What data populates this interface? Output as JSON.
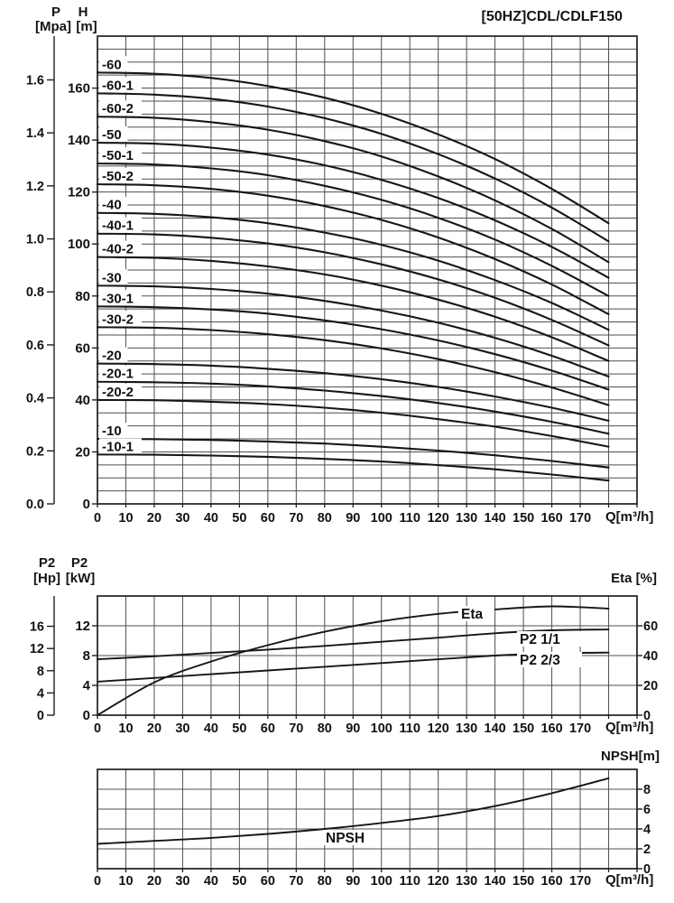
{
  "page_title": "[50HZ]CDL/CDLF150",
  "colors": {
    "curve": "#161616",
    "grid": "#4f4f4f",
    "border": "#1f1f1f",
    "text": "#121212",
    "background": "#ffffff"
  },
  "chart_data": [
    {
      "id": "head-capacity",
      "type": "line",
      "title": "[50HZ]CDL/CDLF150",
      "x_label": "Q[m³/h]",
      "x_ticks": [
        0,
        10,
        20,
        30,
        40,
        50,
        60,
        70,
        80,
        90,
        100,
        110,
        120,
        130,
        140,
        150,
        160,
        170
      ],
      "x_grid_max": 190,
      "x": [
        0,
        20,
        40,
        60,
        80,
        100,
        120,
        140,
        160,
        180
      ],
      "left_axis_outer": {
        "name": "P",
        "unit": "[Mpa]",
        "ticks": [
          "0.0",
          "0.2",
          "0.4",
          "0.6",
          "0.8",
          "1.0",
          "1.2",
          "1.4",
          "1.6"
        ]
      },
      "left_axis_inner": {
        "name": "H",
        "unit": "[m]",
        "ticks": [
          0,
          20,
          40,
          60,
          80,
          100,
          120,
          140,
          160
        ]
      },
      "y_range": [
        0,
        180
      ],
      "grid_step_y": 5,
      "grid": true,
      "legend_position": "inline-left",
      "series": [
        {
          "name": "-60",
          "values": [
            166,
            165.5,
            163.9,
            160.8,
            156.3,
            150.1,
            142.2,
            132.7,
            121.2,
            108
          ]
        },
        {
          "name": "-60-1",
          "values": [
            158,
            157.5,
            155.9,
            152.9,
            148.4,
            142.4,
            134.6,
            125.2,
            114,
            101
          ]
        },
        {
          "name": "-60-2",
          "values": [
            149,
            148.6,
            146.9,
            144,
            139.6,
            133.7,
            126,
            116.8,
            105.8,
            93
          ]
        },
        {
          "name": "-50",
          "values": [
            139,
            138.6,
            137.1,
            134.4,
            130.3,
            124.7,
            117.7,
            109.1,
            98.9,
            87
          ]
        },
        {
          "name": "-50-1",
          "values": [
            131,
            130.6,
            129.1,
            126.5,
            122.4,
            117,
            110.1,
            101.7,
            91.6,
            80
          ]
        },
        {
          "name": "-50-2",
          "values": [
            123,
            122.6,
            121.2,
            118.6,
            114.6,
            109.3,
            102.5,
            94.2,
            84.4,
            73
          ]
        },
        {
          "name": "-40",
          "values": [
            112,
            111.6,
            110.3,
            108,
            104.4,
            99.7,
            93.6,
            86.1,
            77.3,
            67
          ]
        },
        {
          "name": "-40-1",
          "values": [
            104,
            103.7,
            102.4,
            100.2,
            96.8,
            92.2,
            86.4,
            79.3,
            70.8,
            61
          ]
        },
        {
          "name": "-40-2",
          "values": [
            95,
            94.7,
            93.5,
            91.4,
            88.3,
            84,
            78.6,
            72,
            64.1,
            55
          ]
        },
        {
          "name": "-30",
          "values": [
            84,
            83.7,
            82.7,
            80.9,
            78.1,
            74.4,
            69.7,
            63.9,
            57,
            49
          ]
        },
        {
          "name": "-30-1",
          "values": [
            76,
            75.7,
            74.8,
            73.2,
            70.6,
            67.2,
            62.9,
            57.6,
            51.3,
            44
          ]
        },
        {
          "name": "-30-2",
          "values": [
            68,
            67.8,
            66.9,
            65.3,
            63,
            59.8,
            55.7,
            50.7,
            44.8,
            38
          ]
        },
        {
          "name": "-20",
          "values": [
            54,
            53.8,
            53.2,
            52,
            50.3,
            48,
            45,
            41.3,
            37,
            32
          ]
        },
        {
          "name": "-20-1",
          "values": [
            47,
            46.8,
            46.3,
            45.2,
            43.6,
            41.5,
            38.8,
            35.5,
            31.6,
            27
          ]
        },
        {
          "name": "-20-2",
          "values": [
            40,
            39.9,
            39.3,
            38.4,
            37,
            35.1,
            32.6,
            29.7,
            26.1,
            22
          ]
        },
        {
          "name": "-10",
          "values": [
            25,
            24.9,
            24.6,
            24,
            23.2,
            22,
            20.5,
            18.7,
            16.5,
            14
          ]
        },
        {
          "name": "-10-1",
          "values": [
            19,
            18.9,
            18.6,
            18.1,
            17.3,
            16.3,
            14.9,
            13.3,
            11.3,
            9
          ]
        }
      ]
    },
    {
      "id": "power-efficiency",
      "type": "line",
      "x_label": "Q[m³/h]",
      "x_ticks": [
        0,
        10,
        20,
        30,
        40,
        50,
        60,
        70,
        80,
        90,
        100,
        110,
        120,
        130,
        140,
        150,
        160,
        170
      ],
      "x_grid_max": 190,
      "x": [
        0,
        20,
        40,
        60,
        80,
        100,
        120,
        140,
        160,
        180
      ],
      "left_axis_outer": {
        "name": "P2",
        "unit": "[Hp]",
        "ticks": [
          0,
          4,
          8,
          12,
          16
        ]
      },
      "left_axis_inner": {
        "name": "P2",
        "unit": "[kW]",
        "ticks": [
          0,
          4,
          8,
          12
        ]
      },
      "right_axis": {
        "name": "Eta [%]",
        "ticks": [
          0,
          20,
          40,
          60
        ]
      },
      "y_range_kw": [
        0,
        16
      ],
      "grid": true,
      "series": [
        {
          "name": "Eta",
          "axis": "eta",
          "values": [
            0,
            22,
            36,
            47,
            56,
            63,
            68,
            71,
            73,
            71.5
          ]
        },
        {
          "name": "P2 1/1",
          "axis": "kw",
          "values": [
            7.5,
            7.9,
            8.35,
            8.8,
            9.3,
            9.85,
            10.4,
            11,
            11.4,
            11.5
          ]
        },
        {
          "name": "P2 2/3",
          "axis": "kw",
          "values": [
            4.5,
            5,
            5.5,
            6,
            6.5,
            7,
            7.5,
            8,
            8.3,
            8.4
          ]
        }
      ]
    },
    {
      "id": "npsh",
      "type": "line",
      "x_label": "Q[m³/h]",
      "x_ticks": [
        0,
        10,
        20,
        30,
        40,
        50,
        60,
        70,
        80,
        90,
        100,
        110,
        120,
        130,
        140,
        150,
        160,
        170
      ],
      "x_grid_max": 190,
      "x": [
        0,
        20,
        40,
        60,
        80,
        100,
        120,
        140,
        160,
        180
      ],
      "right_axis": {
        "name": "NPSH[m]",
        "ticks": [
          0,
          2,
          4,
          6,
          8
        ]
      },
      "y_range": [
        0,
        10
      ],
      "grid": true,
      "series": [
        {
          "name": "NPSH",
          "values": [
            2.5,
            2.8,
            3.1,
            3.5,
            4,
            4.6,
            5.3,
            6.3,
            7.6,
            9.1
          ]
        }
      ]
    }
  ]
}
